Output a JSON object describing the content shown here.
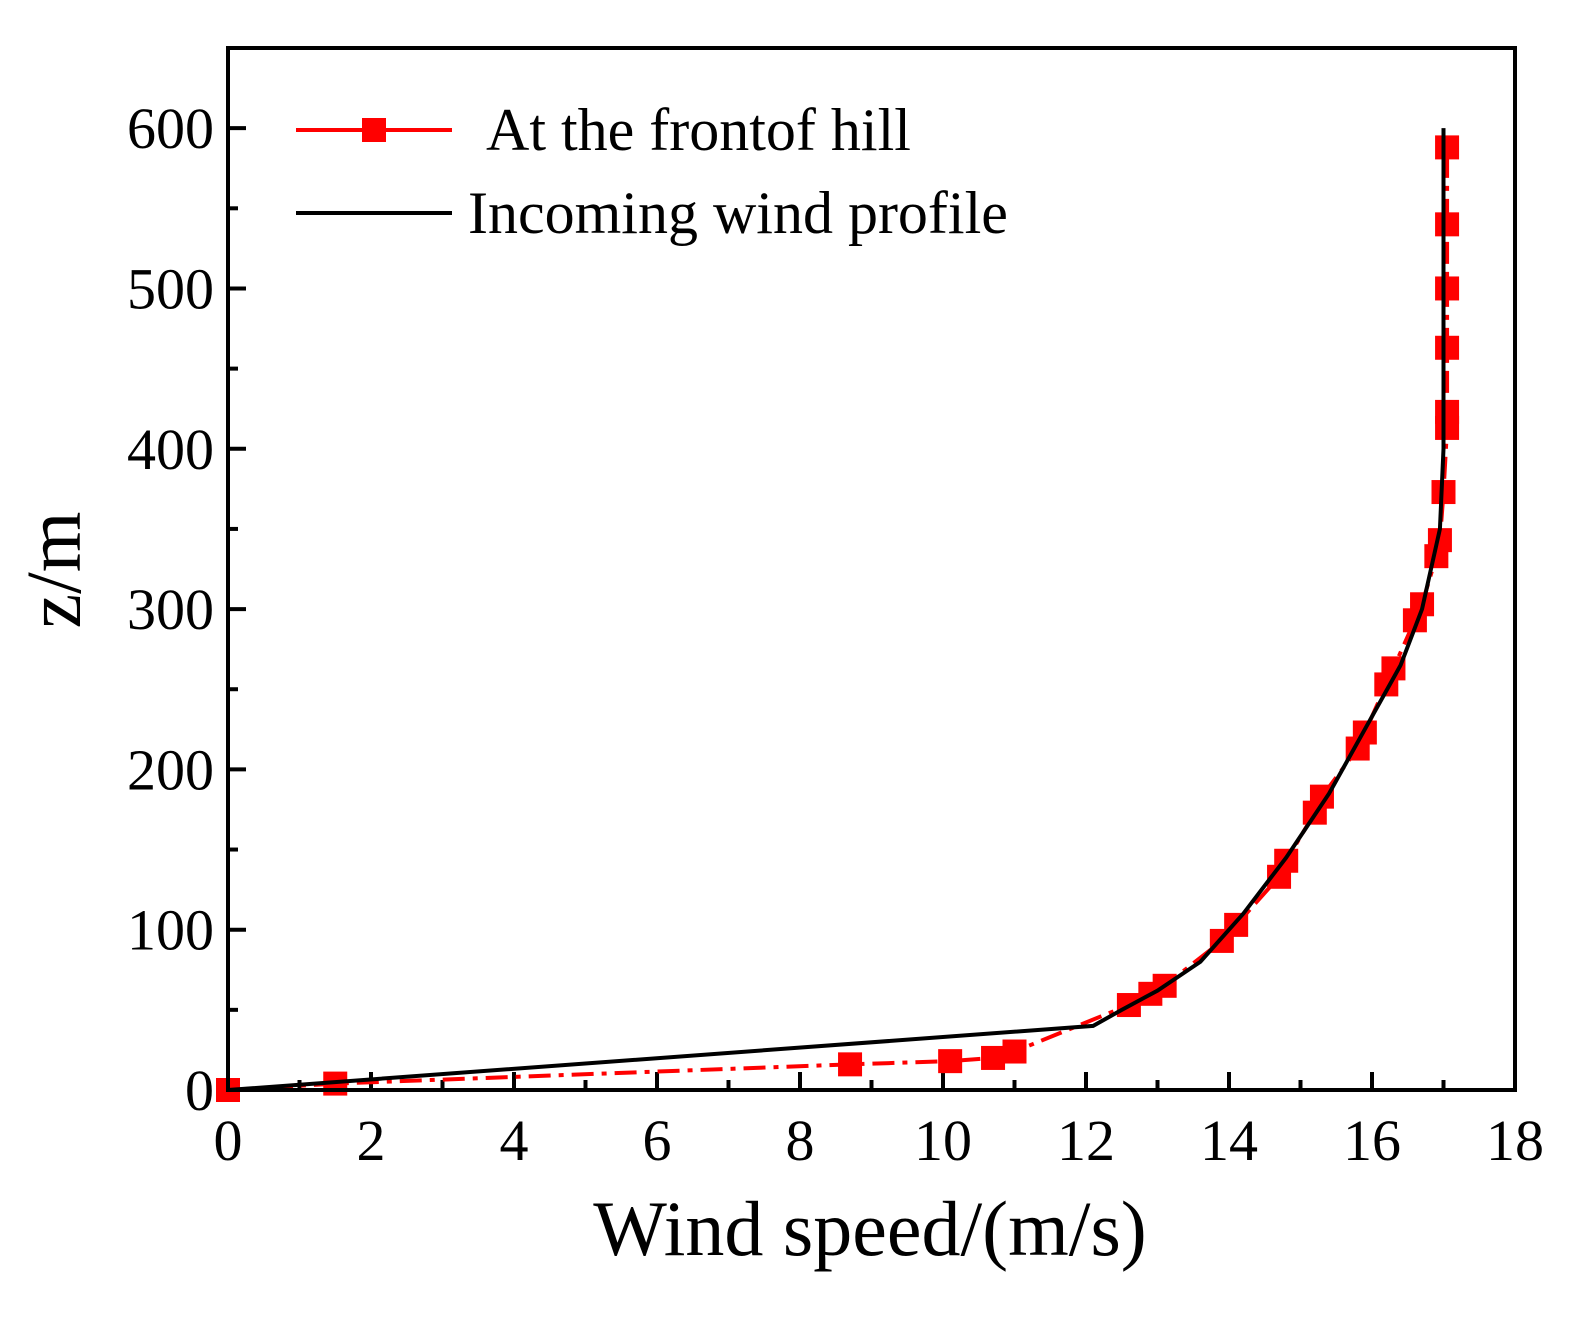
{
  "colors": {
    "background": "#ffffff",
    "axis": "#000000",
    "series_front": "#ff0000",
    "series_incoming": "#000000"
  },
  "chart_data": {
    "type": "line",
    "title": "",
    "xlabel": "Wind speed/(m/s)",
    "ylabel": "z/m",
    "xlim": [
      0,
      18
    ],
    "ylim": [
      0,
      650
    ],
    "xticks": [
      0,
      2,
      4,
      6,
      8,
      10,
      12,
      14,
      16,
      18
    ],
    "yticks": [
      0,
      100,
      200,
      300,
      400,
      500,
      600
    ],
    "legend_position": "top-left",
    "series": [
      {
        "name": "At the frontof hill",
        "marker": "square",
        "line_style": "dash-dot",
        "x": [
          0.0,
          1.5,
          8.7,
          10.1,
          10.7,
          11.0,
          12.6,
          12.9,
          13.1,
          13.9,
          14.1,
          14.7,
          14.8,
          15.2,
          15.3,
          15.8,
          15.9,
          16.2,
          16.3,
          16.6,
          16.7,
          16.9,
          16.95,
          17.0,
          17.05,
          17.05,
          17.05,
          17.05,
          17.05,
          17.05
        ],
        "y": [
          0,
          4,
          16,
          18,
          20,
          24,
          53,
          60,
          65,
          93,
          103,
          133,
          143,
          173,
          183,
          213,
          223,
          253,
          263,
          293,
          303,
          333,
          343,
          373,
          413,
          423,
          463,
          500,
          540,
          588
        ]
      },
      {
        "name": "Incoming wind profile",
        "marker": "none",
        "line_style": "solid",
        "x": [
          0.0,
          12.1,
          12.5,
          13.0,
          13.6,
          14.2,
          14.8,
          15.4,
          15.9,
          16.4,
          16.7,
          16.95,
          17.0,
          17.0,
          17.0
        ],
        "y": [
          0,
          40,
          50,
          62,
          80,
          110,
          145,
          185,
          225,
          265,
          300,
          350,
          400,
          500,
          600
        ]
      }
    ]
  }
}
